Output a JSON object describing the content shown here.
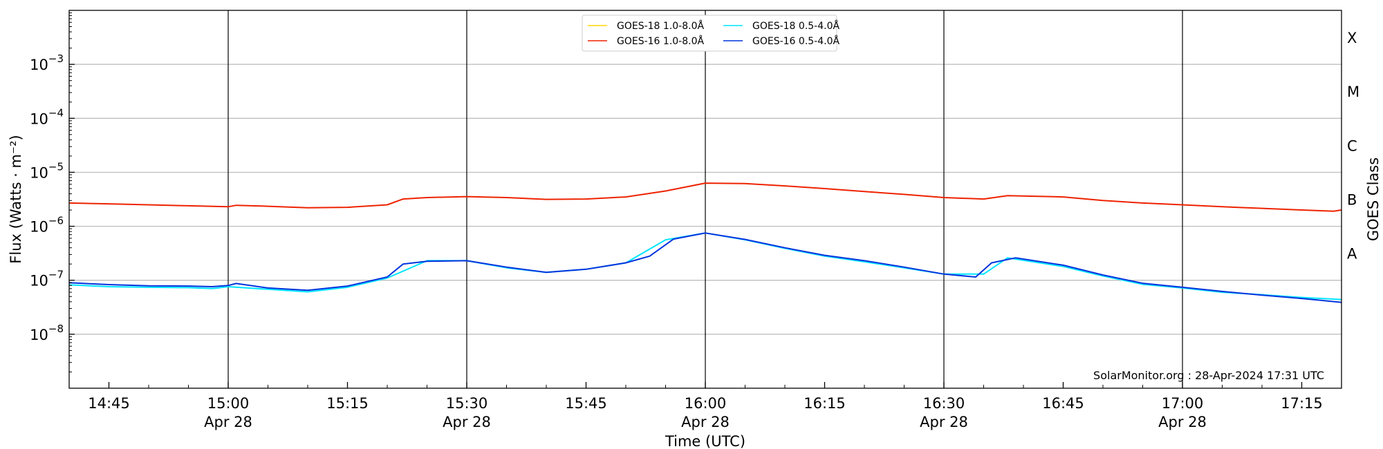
{
  "chart_data": {
    "type": "line",
    "title": "",
    "xlabel": "Time (UTC)",
    "ylabel": "Flux (Watts · m⁻²)",
    "ylabel_right": "GOES Class",
    "y_scale": "log",
    "ylim": [
      "1e-9",
      "1e-2"
    ],
    "xlim": [
      "2024-04-28 14:40",
      "2024-04-28 17:20"
    ],
    "grid": "horizontal at decades; vertical at 30-minute marks",
    "legend_position": "top-center",
    "credit": "SolarMonitor.org : 28-Apr-2024 17:31 UTC",
    "y_ticks": [
      {
        "value": "1e-8",
        "base": "10",
        "exp": "−8"
      },
      {
        "value": "1e-7",
        "base": "10",
        "exp": "−7"
      },
      {
        "value": "1e-6",
        "base": "10",
        "exp": "−6"
      },
      {
        "value": "1e-5",
        "base": "10",
        "exp": "−5"
      },
      {
        "value": "1e-4",
        "base": "10",
        "exp": "−4"
      },
      {
        "value": "1e-3",
        "base": "10",
        "exp": "−3"
      }
    ],
    "x_ticks": [
      {
        "time": "14:45",
        "label": "14:45",
        "sublabel": ""
      },
      {
        "time": "15:00",
        "label": "15:00",
        "sublabel": "Apr 28"
      },
      {
        "time": "15:15",
        "label": "15:15",
        "sublabel": ""
      },
      {
        "time": "15:30",
        "label": "15:30",
        "sublabel": "Apr 28"
      },
      {
        "time": "15:45",
        "label": "15:45",
        "sublabel": ""
      },
      {
        "time": "16:00",
        "label": "16:00",
        "sublabel": "Apr 28"
      },
      {
        "time": "16:15",
        "label": "16:15",
        "sublabel": ""
      },
      {
        "time": "16:30",
        "label": "16:30",
        "sublabel": "Apr 28"
      },
      {
        "time": "16:45",
        "label": "16:45",
        "sublabel": ""
      },
      {
        "time": "17:00",
        "label": "17:00",
        "sublabel": "Apr 28"
      },
      {
        "time": "17:15",
        "label": "17:15",
        "sublabel": ""
      }
    ],
    "class_labels": [
      {
        "label": "A",
        "flux": "1e-7"
      },
      {
        "label": "B",
        "flux": "1e-6"
      },
      {
        "label": "C",
        "flux": "1e-5"
      },
      {
        "label": "M",
        "flux": "1e-4"
      },
      {
        "label": "X",
        "flux": "1e-3"
      }
    ],
    "series": [
      {
        "name": "GOES-18 1.0-8.0Å",
        "color": "#ffd700",
        "points": []
      },
      {
        "name": "GOES-18 0.5-4.0Å",
        "color": "#00e5ff",
        "points": [
          [
            "14:40",
            "8.2e-8"
          ],
          [
            "14:45",
            "7.6e-8"
          ],
          [
            "14:50",
            "7.4e-8"
          ],
          [
            "14:55",
            "7.3e-8"
          ],
          [
            "14:58",
            "7.0e-8"
          ],
          [
            "15:00",
            "7.6e-8"
          ],
          [
            "15:05",
            "6.8e-8"
          ],
          [
            "15:10",
            "6.1e-8"
          ],
          [
            "15:15",
            "7.4e-8"
          ],
          [
            "15:20",
            "1.1e-7"
          ],
          [
            "15:25",
            "2.3e-7"
          ],
          [
            "15:30",
            "2.3e-7"
          ],
          [
            "15:35",
            "1.7e-7"
          ],
          [
            "15:40",
            "1.4e-7"
          ],
          [
            "15:45",
            "1.6e-7"
          ],
          [
            "15:50",
            "2.1e-7"
          ],
          [
            "15:55",
            "5.6e-7"
          ],
          [
            "16:00",
            "7.5e-7"
          ],
          [
            "16:05",
            "5.6e-7"
          ],
          [
            "16:10",
            "3.9e-7"
          ],
          [
            "16:15",
            "2.8e-7"
          ],
          [
            "16:20",
            "2.2e-7"
          ],
          [
            "16:25",
            "1.7e-7"
          ],
          [
            "16:30",
            "1.3e-7"
          ],
          [
            "16:35",
            "1.3e-7"
          ],
          [
            "16:38",
            "2.6e-7"
          ],
          [
            "16:45",
            "1.8e-7"
          ],
          [
            "16:50",
            "1.2e-7"
          ],
          [
            "16:55",
            "8.4e-8"
          ],
          [
            "17:00",
            "7.2e-8"
          ],
          [
            "17:05",
            "6.0e-8"
          ],
          [
            "17:10",
            "5.4e-8"
          ],
          [
            "17:15",
            "4.8e-8"
          ],
          [
            "17:20",
            "4.4e-8"
          ]
        ]
      },
      {
        "name": "GOES-16 1.0-8.0Å",
        "color": "#ee2200",
        "points": [
          [
            "14:40",
            "2.7e-6"
          ],
          [
            "14:45",
            "2.6e-6"
          ],
          [
            "14:50",
            "2.5e-6"
          ],
          [
            "14:55",
            "2.4e-6"
          ],
          [
            "15:00",
            "2.3e-6"
          ],
          [
            "15:01",
            "2.45e-6"
          ],
          [
            "15:05",
            "2.35e-6"
          ],
          [
            "15:10",
            "2.2e-6"
          ],
          [
            "15:15",
            "2.25e-6"
          ],
          [
            "15:20",
            "2.5e-6"
          ],
          [
            "15:22",
            "3.2e-6"
          ],
          [
            "15:25",
            "3.4e-6"
          ],
          [
            "15:30",
            "3.55e-6"
          ],
          [
            "15:35",
            "3.4e-6"
          ],
          [
            "15:40",
            "3.15e-6"
          ],
          [
            "15:45",
            "3.2e-6"
          ],
          [
            "15:50",
            "3.5e-6"
          ],
          [
            "15:55",
            "4.5e-6"
          ],
          [
            "16:00",
            "6.3e-6"
          ],
          [
            "16:05",
            "6.2e-6"
          ],
          [
            "16:10",
            "5.6e-6"
          ],
          [
            "16:15",
            "5.0e-6"
          ],
          [
            "16:20",
            "4.4e-6"
          ],
          [
            "16:25",
            "3.9e-6"
          ],
          [
            "16:30",
            "3.4e-6"
          ],
          [
            "16:35",
            "3.2e-6"
          ],
          [
            "16:38",
            "3.7e-6"
          ],
          [
            "16:45",
            "3.5e-6"
          ],
          [
            "16:50",
            "3.0e-6"
          ],
          [
            "16:55",
            "2.7e-6"
          ],
          [
            "17:00",
            "2.5e-6"
          ],
          [
            "17:05",
            "2.3e-6"
          ],
          [
            "17:10",
            "2.15e-6"
          ],
          [
            "17:15",
            "2.0e-6"
          ],
          [
            "17:19",
            "1.9e-6"
          ],
          [
            "17:20",
            "2.0e-6"
          ]
        ]
      },
      {
        "name": "GOES-16 0.5-4.0Å",
        "color": "#0033dd",
        "points": [
          [
            "14:40",
            "9.0e-8"
          ],
          [
            "14:45",
            "8.3e-8"
          ],
          [
            "14:50",
            "7.9e-8"
          ],
          [
            "14:55",
            "7.8e-8"
          ],
          [
            "14:58",
            "7.6e-8"
          ],
          [
            "15:00",
            "8.0e-8"
          ],
          [
            "15:01",
            "8.7e-8"
          ],
          [
            "15:05",
            "7.2e-8"
          ],
          [
            "15:10",
            "6.5e-8"
          ],
          [
            "15:15",
            "7.8e-8"
          ],
          [
            "15:20",
            "1.15e-7"
          ],
          [
            "15:22",
            "2.0e-7"
          ],
          [
            "15:25",
            "2.25e-7"
          ],
          [
            "15:30",
            "2.3e-7"
          ],
          [
            "15:35",
            "1.75e-7"
          ],
          [
            "15:40",
            "1.4e-7"
          ],
          [
            "15:45",
            "1.6e-7"
          ],
          [
            "15:50",
            "2.1e-7"
          ],
          [
            "15:53",
            "2.8e-7"
          ],
          [
            "15:56",
            "5.8e-7"
          ],
          [
            "16:00",
            "7.5e-7"
          ],
          [
            "16:05",
            "5.7e-7"
          ],
          [
            "16:10",
            "4.0e-7"
          ],
          [
            "16:15",
            "2.9e-7"
          ],
          [
            "16:20",
            "2.3e-7"
          ],
          [
            "16:25",
            "1.75e-7"
          ],
          [
            "16:30",
            "1.3e-7"
          ],
          [
            "16:34",
            "1.15e-7"
          ],
          [
            "16:36",
            "2.1e-7"
          ],
          [
            "16:39",
            "2.6e-7"
          ],
          [
            "16:45",
            "1.9e-7"
          ],
          [
            "16:50",
            "1.25e-7"
          ],
          [
            "16:55",
            "8.8e-8"
          ],
          [
            "17:00",
            "7.4e-8"
          ],
          [
            "17:05",
            "6.2e-8"
          ],
          [
            "17:10",
            "5.3e-8"
          ],
          [
            "17:15",
            "4.6e-8"
          ],
          [
            "17:20",
            "3.9e-8"
          ]
        ]
      }
    ]
  }
}
